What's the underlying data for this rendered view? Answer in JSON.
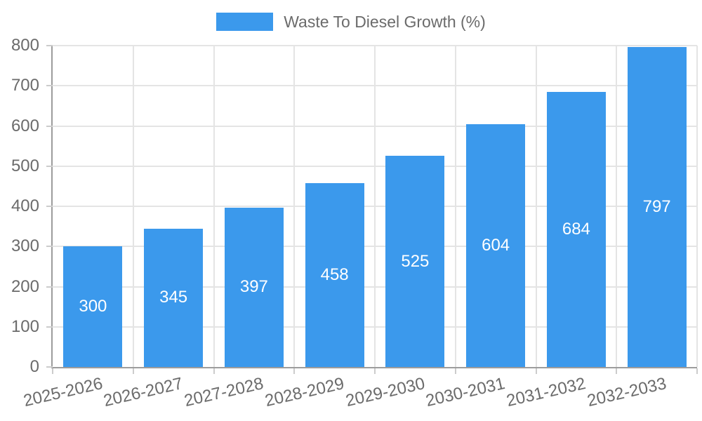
{
  "chart_data": {
    "type": "bar",
    "title": "",
    "legend": [
      {
        "label": "Waste To Diesel Growth (%)",
        "color": "#3B99EC"
      }
    ],
    "legend_position": "top",
    "categories": [
      "2025-2026",
      "2026-2027",
      "2027-2028",
      "2028-2029",
      "2029-2030",
      "2030-2031",
      "2031-2032",
      "2032-2033"
    ],
    "series": [
      {
        "name": "Waste To Diesel Growth (%)",
        "values": [
          300,
          345,
          397,
          458,
          525,
          604,
          684,
          797
        ]
      }
    ],
    "xlabel": "",
    "ylabel": "",
    "ylim": [
      0,
      800
    ],
    "y_ticks": [
      0,
      100,
      200,
      300,
      400,
      500,
      600,
      700,
      800
    ],
    "grid": "on",
    "value_labels": "inside-center",
    "x_tick_rotation_deg": -13
  },
  "colors": {
    "bar": "#3B99EC",
    "axis_text": "#6b6b6b",
    "legend_text": "#6b6b6b",
    "value_label_text": "#ffffff",
    "gridline": "#e4e4e4",
    "axis_line": "#9c9c9c",
    "tick_mark": "#cccccc",
    "background": "#ffffff"
  }
}
